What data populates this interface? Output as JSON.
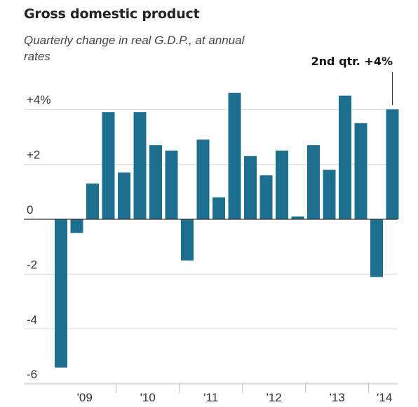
{
  "title": "Gross domestic product",
  "subtitle": "Quarterly change in real G.D.P., at annual rates",
  "annotation": "2nd qtr. +4%",
  "colors": {
    "bar": "#1d6f8f",
    "grid": "#d9d9d9",
    "zero": "#333333",
    "text": "#333333"
  },
  "chart_data": {
    "type": "bar",
    "title": "Gross domestic product",
    "subtitle": "Quarterly change in real G.D.P., at annual rates",
    "xlabel": "",
    "ylabel": "",
    "ylim": [
      -6,
      4.5
    ],
    "grid": true,
    "y_ticks": [
      {
        "value": 4,
        "label": "+4%"
      },
      {
        "value": 2,
        "label": "+2"
      },
      {
        "value": 0,
        "label": "0"
      },
      {
        "value": -2,
        "label": "-2"
      },
      {
        "value": -4,
        "label": "-4"
      },
      {
        "value": -6,
        "label": "-6"
      }
    ],
    "categories": [
      "2009 Q1",
      "2009 Q2",
      "2009 Q3",
      "2009 Q4",
      "2010 Q1",
      "2010 Q2",
      "2010 Q3",
      "2010 Q4",
      "2011 Q1",
      "2011 Q2",
      "2011 Q3",
      "2011 Q4",
      "2012 Q1",
      "2012 Q2",
      "2012 Q3",
      "2012 Q4",
      "2013 Q1",
      "2013 Q2",
      "2013 Q3",
      "2013 Q4",
      "2014 Q1",
      "2014 Q2"
    ],
    "values": [
      -5.4,
      -0.5,
      1.3,
      3.9,
      1.7,
      3.9,
      2.7,
      2.5,
      -1.5,
      2.9,
      0.8,
      4.6,
      2.3,
      1.6,
      2.5,
      0.1,
      2.7,
      1.8,
      4.5,
      3.5,
      -2.1,
      4.0
    ],
    "x_tick_labels": [
      "'09",
      "'10",
      "'11",
      "'12",
      "'13",
      "'14"
    ],
    "year_start_indices": [
      0,
      4,
      8,
      12,
      16,
      20
    ],
    "annotation": {
      "text": "2nd qtr. +4%",
      "index": 21
    }
  }
}
